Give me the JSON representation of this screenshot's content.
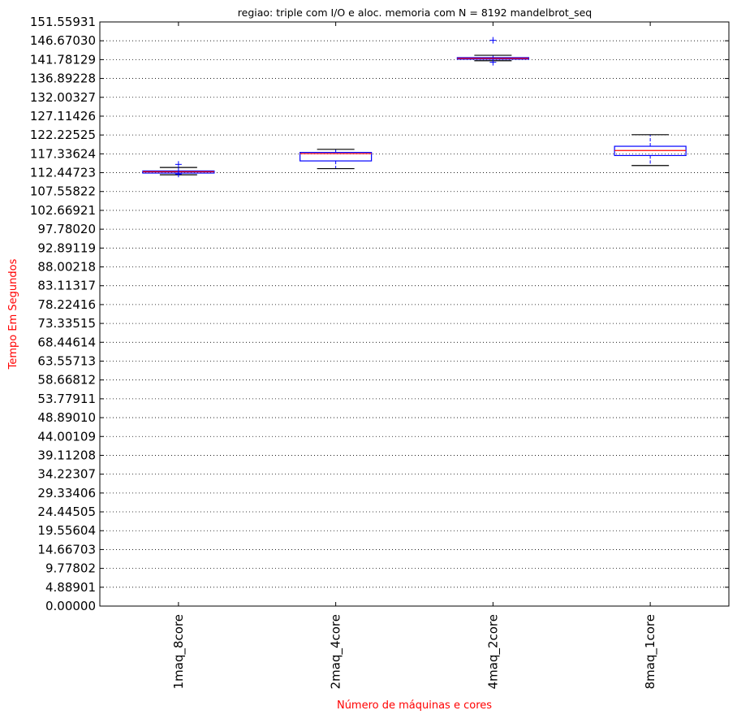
{
  "chart_data": {
    "type": "boxplot",
    "title": "regiao: triple com I/O e aloc. memoria com N = 8192 mandelbrot_seq",
    "xlabel": "Número de máquinas e cores",
    "ylabel": "Tempo Em Segundos",
    "ylim": [
      0,
      151.55931
    ],
    "yticks": [
      "0.00000",
      "4.88901",
      "9.77802",
      "14.66703",
      "19.55604",
      "24.44505",
      "29.33406",
      "34.22307",
      "39.11208",
      "44.00109",
      "48.89010",
      "53.77911",
      "58.66812",
      "63.55713",
      "68.44614",
      "73.33515",
      "78.22416",
      "83.11317",
      "88.00218",
      "92.89119",
      "97.78020",
      "102.66921",
      "107.55822",
      "112.44723",
      "117.33624",
      "122.22525",
      "127.11426",
      "132.00327",
      "136.89228",
      "141.78129",
      "146.67030",
      "151.55931"
    ],
    "grid": "y",
    "colors": {
      "box": "#0000ff",
      "median": "#ff0000",
      "whisker": "#000000",
      "label": "#ff0000"
    },
    "categories": [
      "1maq_8core",
      "2maq_4core",
      "4maq_2core",
      "8maq_1core"
    ],
    "boxes": [
      {
        "category": "1maq_8core",
        "whisker_low": 111.9,
        "q1": 112.35,
        "median": 112.7,
        "q3": 112.9,
        "whisker_high": 113.8,
        "outliers": [
          114.6,
          112.1
        ]
      },
      {
        "category": "2maq_4core",
        "whisker_low": 113.5,
        "q1": 115.5,
        "median": 117.4,
        "q3": 117.7,
        "whisker_high": 118.5,
        "outliers": []
      },
      {
        "category": "4maq_2core",
        "whisker_low": 141.5,
        "q1": 141.9,
        "median": 142.1,
        "q3": 142.3,
        "whisker_high": 142.9,
        "outliers": [
          146.8,
          141.1
        ]
      },
      {
        "category": "8maq_1core",
        "whisker_low": 114.3,
        "q1": 116.9,
        "median": 118.2,
        "q3": 119.3,
        "whisker_high": 122.3,
        "outliers": []
      }
    ]
  }
}
